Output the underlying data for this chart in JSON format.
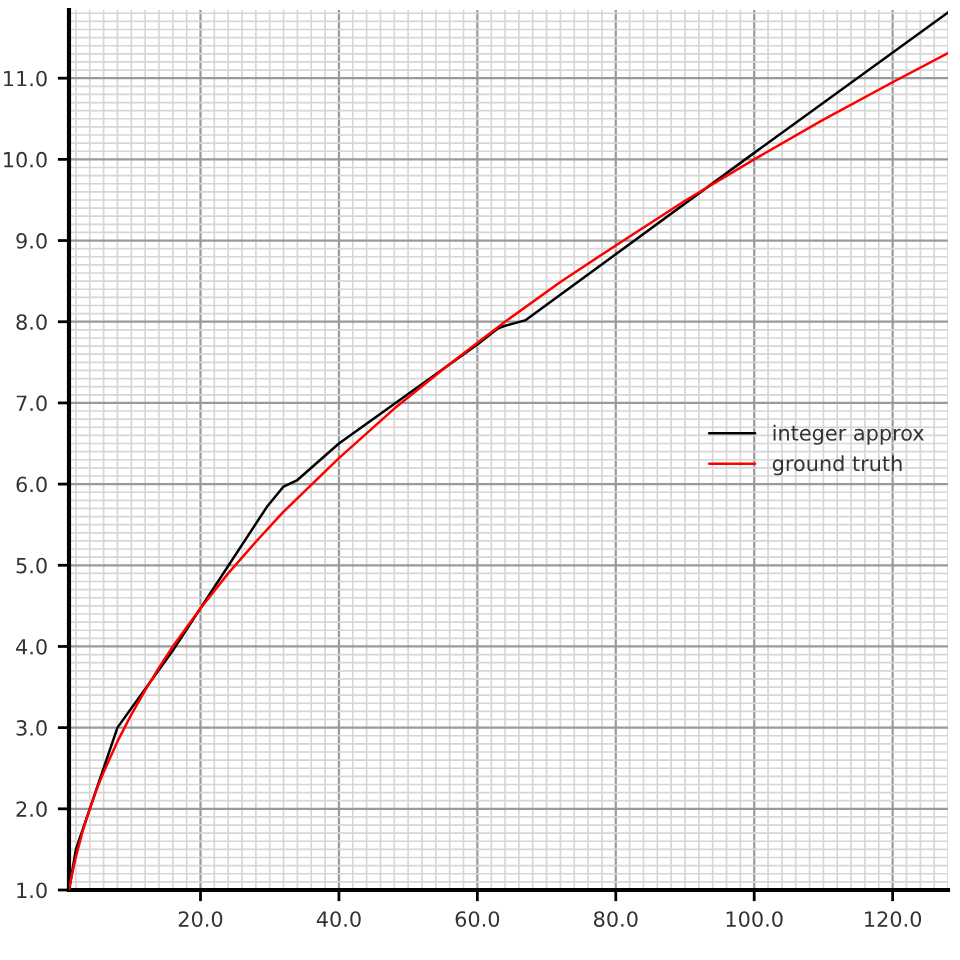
{
  "chart_data": {
    "type": "line",
    "series": [
      {
        "name": "integer approx",
        "color": "#000000",
        "x": [
          1,
          2,
          4,
          8,
          16,
          29.6,
          32,
          34,
          40,
          60,
          63,
          64,
          67,
          100,
          128
        ],
        "values": [
          1.0,
          1.5,
          2.0,
          3.0,
          3.95,
          5.72,
          5.97,
          6.05,
          6.5,
          7.72,
          7.92,
          7.95,
          8.02,
          10.08,
          11.81
        ]
      },
      {
        "name": "ground truth",
        "color": "#ff0000",
        "x": [
          1,
          1.5,
          2,
          3,
          4,
          5,
          6,
          8,
          10,
          12,
          14,
          16,
          20,
          24,
          28,
          32,
          40,
          48,
          56,
          64,
          72,
          80,
          90,
          100,
          110,
          120,
          128
        ],
        "values": [
          1.0,
          1.22,
          1.41,
          1.73,
          2.0,
          2.24,
          2.45,
          2.83,
          3.16,
          3.46,
          3.74,
          4.0,
          4.47,
          4.9,
          5.29,
          5.66,
          6.32,
          6.93,
          7.48,
          8.0,
          8.49,
          8.94,
          9.49,
          10.0,
          10.49,
          10.95,
          11.31
        ]
      }
    ],
    "xlim": [
      1,
      128
    ],
    "xticks": [
      {
        "value": 20,
        "label": "20.0"
      },
      {
        "value": 40,
        "label": "40.0"
      },
      {
        "value": 60,
        "label": "60.0"
      },
      {
        "value": 80,
        "label": "80.0"
      },
      {
        "value": 100,
        "label": "100.0"
      },
      {
        "value": 120,
        "label": "120.0"
      }
    ],
    "ylim": [
      1,
      11.84
    ],
    "yticks": [
      {
        "value": 1,
        "label": "1.0"
      },
      {
        "value": 2,
        "label": "2.0"
      },
      {
        "value": 3,
        "label": "3.0"
      },
      {
        "value": 4,
        "label": "4.0"
      },
      {
        "value": 5,
        "label": "5.0"
      },
      {
        "value": 6,
        "label": "6.0"
      },
      {
        "value": 7,
        "label": "7.0"
      },
      {
        "value": 8,
        "label": "8.0"
      },
      {
        "value": 9,
        "label": "9.0"
      },
      {
        "value": 10,
        "label": "10.0"
      },
      {
        "value": 11,
        "label": "11.0"
      }
    ],
    "grid": true,
    "legend": "right",
    "marker": "none",
    "line_style": "solid"
  }
}
